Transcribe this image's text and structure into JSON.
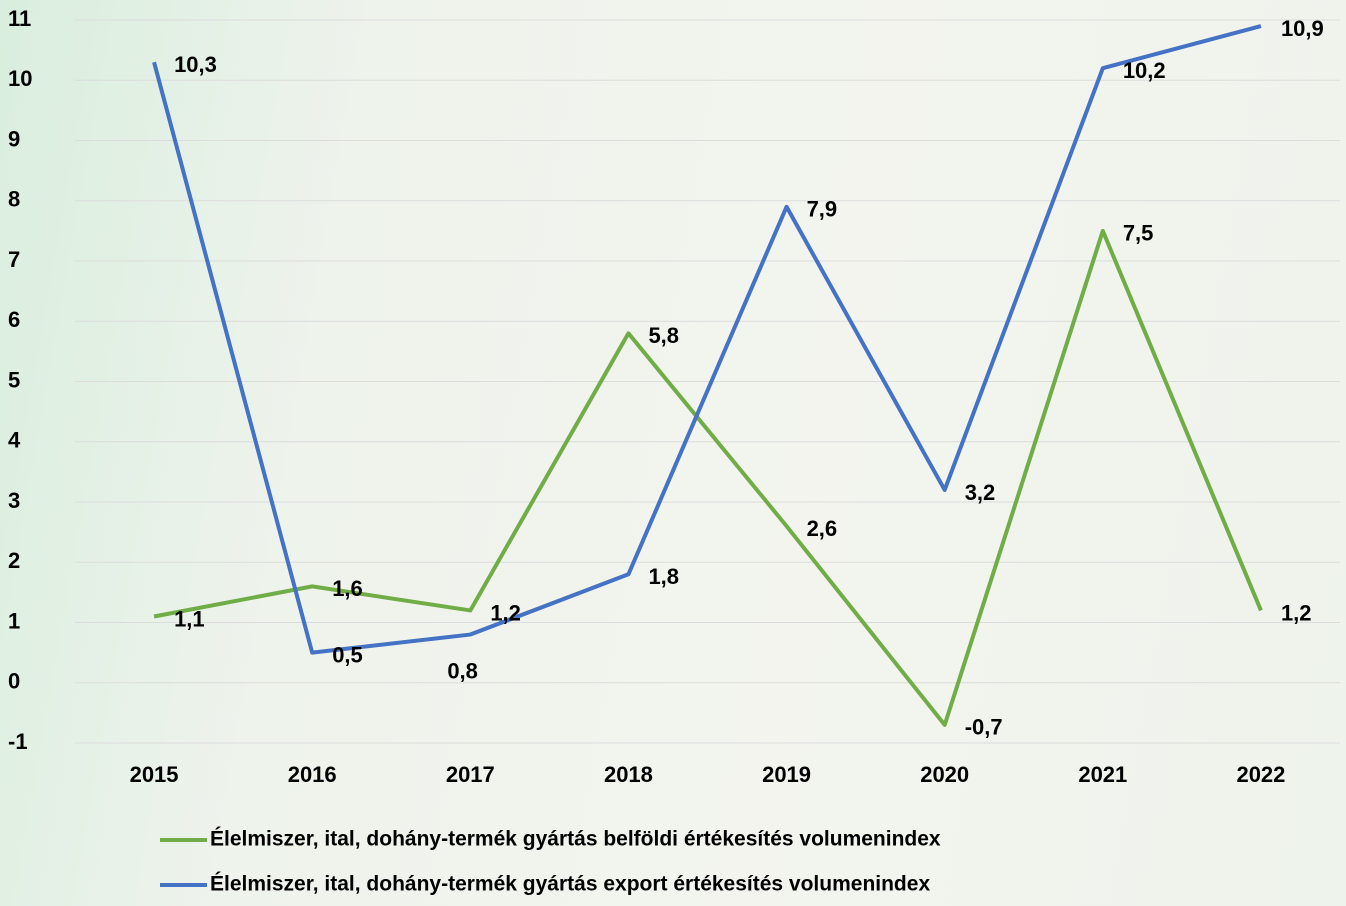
{
  "chart_data": {
    "type": "line",
    "categories": [
      "2015",
      "2016",
      "2017",
      "2018",
      "2019",
      "2020",
      "2021",
      "2022"
    ],
    "series": [
      {
        "name": "Élelmiszer, ital, dohány-termék gyártás belföldi értékesítés volumenindex",
        "color": "#70ad47",
        "values": [
          1.1,
          1.6,
          1.2,
          5.8,
          2.6,
          -0.7,
          7.5,
          1.2
        ],
        "value_labels": [
          "1,1",
          "1,6",
          "1,2",
          "5,8",
          "2,6",
          "-0,7",
          "7,5",
          "1,2"
        ]
      },
      {
        "name": "Élelmiszer, ital, dohány-termék gyártás export értékesítés volumenindex",
        "color": "#4472c4",
        "values": [
          10.3,
          0.5,
          0.8,
          1.8,
          7.9,
          3.2,
          10.2,
          10.9
        ],
        "value_labels": [
          "10,3",
          "0,5",
          "0,8",
          "1,8",
          "7,9",
          "3,2",
          "10,2",
          "10,9"
        ]
      }
    ],
    "ylim": [
      -1,
      11
    ],
    "yticks": [
      -1,
      0,
      1,
      2,
      3,
      4,
      5,
      6,
      7,
      8,
      9,
      10,
      11
    ],
    "grid": true,
    "legend": "bottom"
  }
}
